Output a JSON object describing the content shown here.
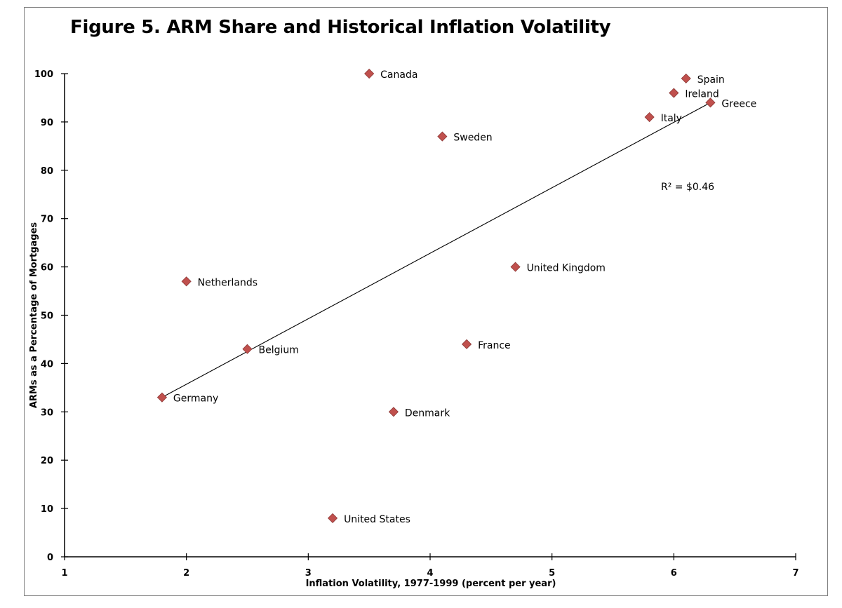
{
  "title": "Figure 5.  ARM Share and Historical Inflation Volatility",
  "annotation": "R² =  $0.46",
  "colors": {
    "marker": "#c0504d",
    "marker_edge": "#8c3836",
    "axis": "#000000",
    "trendline": "#000000"
  },
  "chart_data": {
    "type": "scatter",
    "xlabel": "Inflation Volatility, 1977-1999 (percent per year)",
    "ylabel": "ARMs as a Percentage of Mortgages",
    "xlim": [
      1,
      7
    ],
    "ylim": [
      0,
      100
    ],
    "xticks": [
      1,
      2,
      3,
      4,
      5,
      6,
      7
    ],
    "yticks": [
      0,
      10,
      20,
      30,
      40,
      50,
      60,
      70,
      80,
      90,
      100
    ],
    "grid": false,
    "points": [
      {
        "label": "Canada",
        "x": 3.5,
        "y": 100
      },
      {
        "label": "Spain",
        "x": 6.1,
        "y": 99
      },
      {
        "label": "Ireland",
        "x": 6.0,
        "y": 96
      },
      {
        "label": "Greece",
        "x": 6.3,
        "y": 94
      },
      {
        "label": "Italy",
        "x": 5.8,
        "y": 91
      },
      {
        "label": "Sweden",
        "x": 4.1,
        "y": 87
      },
      {
        "label": "United Kingdom",
        "x": 4.7,
        "y": 60
      },
      {
        "label": "Netherlands",
        "x": 2.0,
        "y": 57
      },
      {
        "label": "France",
        "x": 4.3,
        "y": 44
      },
      {
        "label": "Belgium",
        "x": 2.5,
        "y": 43
      },
      {
        "label": "Germany",
        "x": 1.8,
        "y": 33
      },
      {
        "label": "Denmark",
        "x": 3.7,
        "y": 30
      },
      {
        "label": "United States",
        "x": 3.2,
        "y": 8
      }
    ],
    "trendline": {
      "x": [
        1.8,
        6.3
      ],
      "y": [
        33,
        94
      ]
    },
    "r_squared": "$0.46"
  }
}
